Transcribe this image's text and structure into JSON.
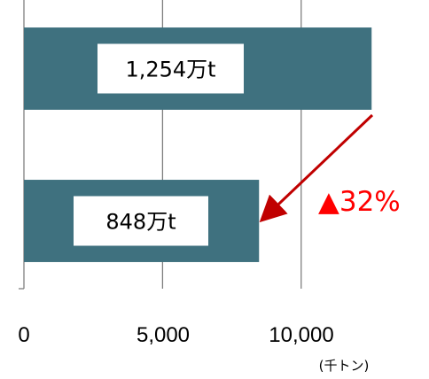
{
  "chart_data": {
    "type": "bar",
    "orientation": "horizontal",
    "categories": [
      "",
      ""
    ],
    "values": [
      12540,
      8480
    ],
    "data_labels": [
      "1,254万t",
      "848万t"
    ],
    "xlim": [
      0,
      12500
    ],
    "x_ticks": [
      "0",
      "5,000",
      "10,000"
    ],
    "x_tick_values": [
      0,
      5000,
      10000
    ],
    "x_unit": "(千トン)",
    "grid": "vertical",
    "annotation": "▲32%",
    "colors": {
      "bar": "#3F717F",
      "grid": "#7f7f7f",
      "label_box": "#ffffff",
      "arrow": "#c00000",
      "annotation": "#ff0000"
    }
  }
}
